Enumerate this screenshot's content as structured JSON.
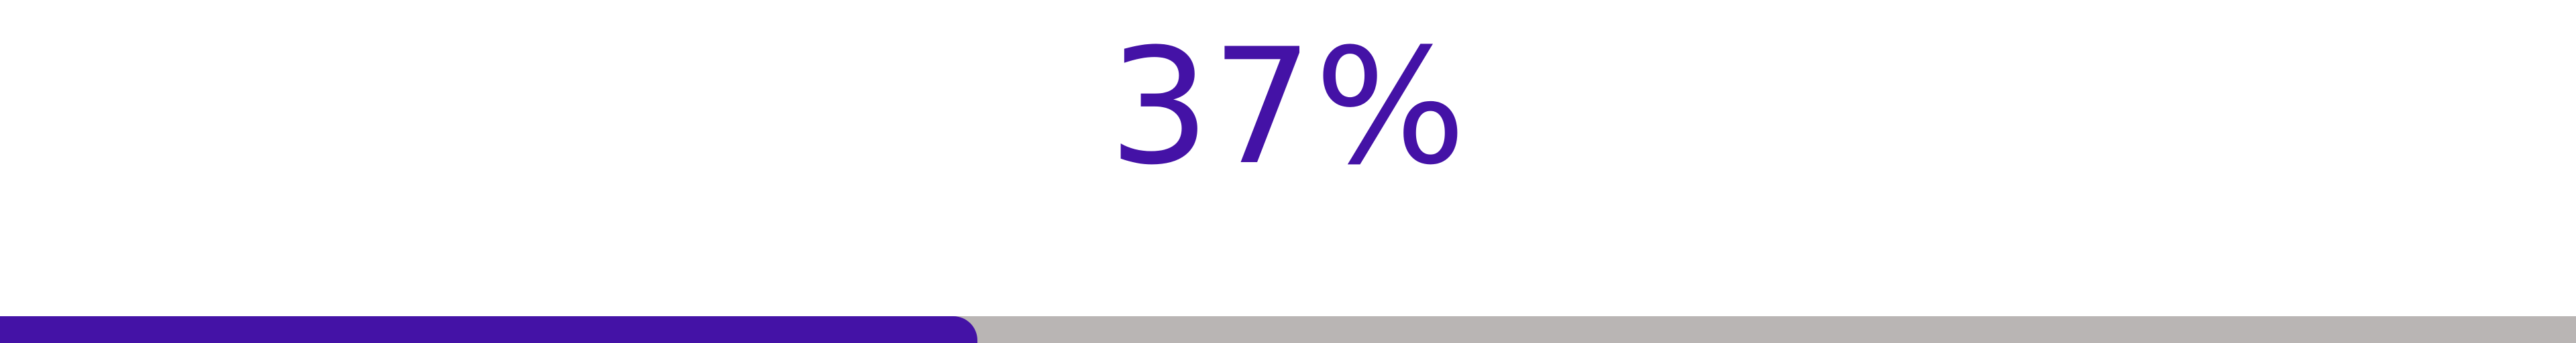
{
  "progress": {
    "label": "37%",
    "value": 0.37
  },
  "colors": {
    "accent": "#4412a6",
    "track": "#b9b5b4",
    "background": "#ffffff"
  }
}
